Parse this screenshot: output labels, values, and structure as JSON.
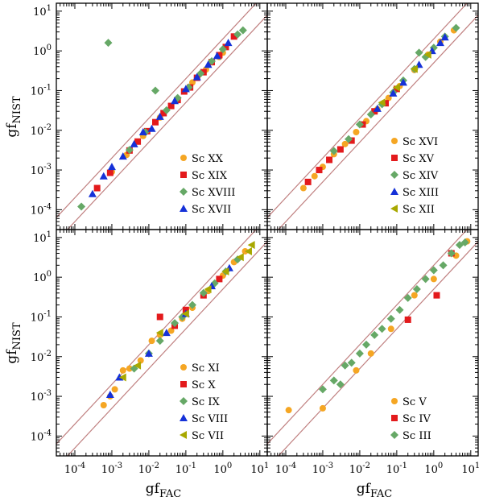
{
  "figure": {
    "xlabel_main": "gf",
    "xlabel_sub": "FAC",
    "ylabel_main": "gf",
    "ylabel_sub": "NIST",
    "x_range_log10": [
      -4.5,
      1.2
    ],
    "y_range_log10": [
      -4.5,
      1.2
    ],
    "band_factor": 2,
    "band_color": "#c08080",
    "tick_labels": [
      {
        "base": "10",
        "exp": "-4",
        "value": -4
      },
      {
        "base": "10",
        "exp": "-3",
        "value": -3
      },
      {
        "base": "10",
        "exp": "-2",
        "value": -2
      },
      {
        "base": "10",
        "exp": "-1",
        "value": -1
      },
      {
        "base": "10",
        "exp": "0",
        "value": 0
      },
      {
        "base": "10",
        "exp": "1",
        "value": 1
      }
    ]
  },
  "chart_data": [
    {
      "type": "scatter",
      "panel": "top-left",
      "scale": "log-log",
      "legend_position": "bottom-right",
      "series": [
        {
          "name": "Sc XX",
          "color": "#f5a623",
          "marker": "circle",
          "points": [
            [
              0.001,
              0.0009
            ],
            [
              0.0025,
              0.0024
            ],
            [
              0.007,
              0.0072
            ],
            [
              0.02,
              0.021
            ],
            [
              0.06,
              0.062
            ],
            [
              0.15,
              0.16
            ],
            [
              0.35,
              0.34
            ],
            [
              0.8,
              0.7
            ],
            [
              1.0,
              0.9
            ]
          ]
        },
        {
          "name": "Sc XIX",
          "color": "#e31a1c",
          "marker": "square",
          "points": [
            [
              0.0004,
              0.00035
            ],
            [
              0.0009,
              0.00085
            ],
            [
              0.003,
              0.0031
            ],
            [
              0.005,
              0.0052
            ],
            [
              0.009,
              0.0095
            ],
            [
              0.015,
              0.016
            ],
            [
              0.025,
              0.027
            ],
            [
              0.04,
              0.041
            ],
            [
              0.06,
              0.058
            ],
            [
              0.09,
              0.095
            ],
            [
              0.13,
              0.12
            ],
            [
              0.2,
              0.21
            ],
            [
              0.3,
              0.29
            ],
            [
              0.5,
              0.52
            ],
            [
              0.8,
              0.78
            ],
            [
              1.2,
              1.25
            ],
            [
              2.0,
              2.3
            ]
          ]
        },
        {
          "name": "Sc XVIII",
          "color": "#66a866",
          "marker": "diamond",
          "points": [
            [
              0.00015,
              0.00012
            ],
            [
              0.0008,
              1.6
            ],
            [
              0.003,
              0.0032
            ],
            [
              0.008,
              0.009
            ],
            [
              0.015,
              0.1
            ],
            [
              0.03,
              0.032
            ],
            [
              0.06,
              0.065
            ],
            [
              0.12,
              0.12
            ],
            [
              0.25,
              0.27
            ],
            [
              0.5,
              0.55
            ],
            [
              1.0,
              1.1
            ],
            [
              2.5,
              2.6
            ],
            [
              3.5,
              3.3
            ]
          ]
        },
        {
          "name": "Sc XVII",
          "color": "#1531d8",
          "marker": "triangle",
          "points": [
            [
              0.0003,
              0.00025
            ],
            [
              0.0006,
              0.0007
            ],
            [
              0.001,
              0.0012
            ],
            [
              0.002,
              0.0022
            ],
            [
              0.004,
              0.0045
            ],
            [
              0.007,
              0.009
            ],
            [
              0.012,
              0.011
            ],
            [
              0.02,
              0.022
            ],
            [
              0.05,
              0.055
            ],
            [
              0.1,
              0.11
            ],
            [
              0.2,
              0.22
            ],
            [
              0.4,
              0.45
            ],
            [
              0.7,
              0.75
            ],
            [
              1.4,
              1.6
            ]
          ]
        }
      ]
    },
    {
      "type": "scatter",
      "panel": "top-right",
      "scale": "log-log",
      "legend_position": "bottom-right",
      "series": [
        {
          "name": "Sc XVI",
          "color": "#f5a623",
          "marker": "circle",
          "points": [
            [
              0.0003,
              0.00035
            ],
            [
              0.0006,
              0.0007
            ],
            [
              0.001,
              0.0012
            ],
            [
              0.002,
              0.0025
            ],
            [
              0.004,
              0.0045
            ],
            [
              0.008,
              0.009
            ],
            [
              0.015,
              0.017
            ],
            [
              0.03,
              0.034
            ],
            [
              0.06,
              0.065
            ],
            [
              0.12,
              0.13
            ],
            [
              0.3,
              0.33
            ],
            [
              0.7,
              0.8
            ],
            [
              1.5,
              1.7
            ],
            [
              3.5,
              3.3
            ]
          ]
        },
        {
          "name": "Sc XV",
          "color": "#e31a1c",
          "marker": "square",
          "points": [
            [
              0.0004,
              0.0005
            ],
            [
              0.0008,
              0.001
            ],
            [
              0.0015,
              0.0018
            ],
            [
              0.003,
              0.0033
            ],
            [
              0.006,
              0.0055
            ],
            [
              0.012,
              0.014
            ],
            [
              0.025,
              0.03
            ],
            [
              0.05,
              0.048
            ],
            [
              0.1,
              0.11
            ]
          ]
        },
        {
          "name": "Sc XIV",
          "color": "#66a866",
          "marker": "diamond",
          "points": [
            [
              0.002,
              0.003
            ],
            [
              0.005,
              0.006
            ],
            [
              0.01,
              0.014
            ],
            [
              0.02,
              0.025
            ],
            [
              0.04,
              0.045
            ],
            [
              0.08,
              0.09
            ],
            [
              0.15,
              0.18
            ],
            [
              0.3,
              0.35
            ],
            [
              0.6,
              0.7
            ],
            [
              0.4,
              0.9
            ],
            [
              1.0,
              1.2
            ],
            [
              2.0,
              2.3
            ],
            [
              4.0,
              3.8
            ]
          ]
        },
        {
          "name": "Sc XIII",
          "color": "#1531d8",
          "marker": "triangle",
          "points": [
            [
              0.03,
              0.035
            ],
            [
              0.08,
              0.085
            ],
            [
              0.15,
              0.16
            ],
            [
              0.4,
              0.45
            ],
            [
              0.9,
              1.0
            ],
            [
              1.5,
              1.6
            ],
            [
              2.0,
              2.2
            ]
          ]
        },
        {
          "name": "Sc XII",
          "color": "#a8a800",
          "marker": "triangle-left",
          "points": [
            [
              0.04,
              0.05
            ],
            [
              0.1,
              0.12
            ],
            [
              0.3,
              0.35
            ],
            [
              0.7,
              0.8
            ]
          ]
        }
      ]
    },
    {
      "type": "scatter",
      "panel": "bottom-left",
      "scale": "log-log",
      "legend_position": "bottom-right",
      "series": [
        {
          "name": "Sc XI",
          "color": "#f5a623",
          "marker": "circle",
          "points": [
            [
              0.0006,
              0.0006
            ],
            [
              0.0009,
              0.001
            ],
            [
              0.0012,
              0.0015
            ],
            [
              0.002,
              0.0045
            ],
            [
              0.003,
              0.005
            ],
            [
              0.006,
              0.008
            ],
            [
              0.012,
              0.025
            ],
            [
              0.02,
              0.035
            ],
            [
              0.04,
              0.045
            ],
            [
              0.08,
              0.09
            ],
            [
              0.15,
              0.17
            ],
            [
              0.4,
              0.45
            ],
            [
              1.0,
              1.1
            ],
            [
              2.0,
              2.4
            ],
            [
              4.0,
              4.5
            ]
          ]
        },
        {
          "name": "Sc X",
          "color": "#e31a1c",
          "marker": "square",
          "points": [
            [
              0.02,
              0.1
            ],
            [
              0.05,
              0.06
            ],
            [
              0.1,
              0.15
            ],
            [
              0.3,
              0.35
            ],
            [
              0.8,
              0.9
            ]
          ]
        },
        {
          "name": "Sc IX",
          "color": "#66a866",
          "marker": "diamond",
          "points": [
            [
              0.004,
              0.005
            ],
            [
              0.01,
              0.012
            ],
            [
              0.02,
              0.025
            ],
            [
              0.05,
              0.07
            ],
            [
              0.08,
              0.1
            ],
            [
              0.15,
              0.2
            ],
            [
              0.3,
              0.4
            ],
            [
              0.6,
              0.7
            ],
            [
              1.2,
              1.4
            ],
            [
              2.5,
              2.8
            ]
          ]
        },
        {
          "name": "Sc VIII",
          "color": "#1531d8",
          "marker": "triangle",
          "points": [
            [
              0.0009,
              0.0011
            ],
            [
              0.0016,
              0.003
            ],
            [
              0.01,
              0.012
            ],
            [
              0.03,
              0.04
            ],
            [
              0.1,
              0.12
            ],
            [
              0.5,
              0.6
            ],
            [
              1.5,
              1.7
            ]
          ]
        },
        {
          "name": "Sc VII",
          "color": "#a8a800",
          "marker": "triangle-left",
          "points": [
            [
              0.002,
              0.003
            ],
            [
              0.005,
              0.006
            ],
            [
              0.02,
              0.04
            ],
            [
              0.1,
              0.12
            ],
            [
              0.4,
              0.5
            ],
            [
              1.2,
              1.4
            ],
            [
              3.0,
              3.2
            ],
            [
              5.0,
              4.5
            ],
            [
              6.0,
              6.5
            ]
          ]
        }
      ]
    },
    {
      "type": "scatter",
      "panel": "bottom-right",
      "scale": "log-log",
      "legend_position": "bottom-right",
      "series": [
        {
          "name": "Sc V",
          "color": "#f5a623",
          "marker": "circle",
          "points": [
            [
              0.00012,
              0.00045
            ],
            [
              0.001,
              0.0005
            ],
            [
              0.008,
              0.0045
            ],
            [
              0.02,
              0.012
            ],
            [
              0.07,
              0.05
            ],
            [
              0.3,
              0.35
            ],
            [
              1.0,
              0.9
            ],
            [
              4.0,
              3.5
            ],
            [
              8.0,
              8.0
            ]
          ]
        },
        {
          "name": "Sc IV",
          "color": "#e31a1c",
          "marker": "square",
          "points": [
            [
              0.2,
              0.085
            ],
            [
              1.2,
              0.35
            ],
            [
              3.0,
              4.0
            ]
          ]
        },
        {
          "name": "Sc III",
          "color": "#66a866",
          "marker": "diamond",
          "points": [
            [
              0.001,
              0.0015
            ],
            [
              0.002,
              0.0025
            ],
            [
              0.003,
              0.002
            ],
            [
              0.004,
              0.006
            ],
            [
              0.006,
              0.007
            ],
            [
              0.01,
              0.012
            ],
            [
              0.015,
              0.02
            ],
            [
              0.025,
              0.035
            ],
            [
              0.04,
              0.05
            ],
            [
              0.07,
              0.09
            ],
            [
              0.12,
              0.15
            ],
            [
              0.2,
              0.3
            ],
            [
              0.35,
              0.5
            ],
            [
              0.6,
              0.9
            ],
            [
              1.0,
              1.5
            ],
            [
              1.8,
              2.0
            ],
            [
              3.0,
              4.0
            ],
            [
              5.0,
              6.5
            ],
            [
              7.0,
              7.5
            ]
          ]
        }
      ]
    }
  ]
}
